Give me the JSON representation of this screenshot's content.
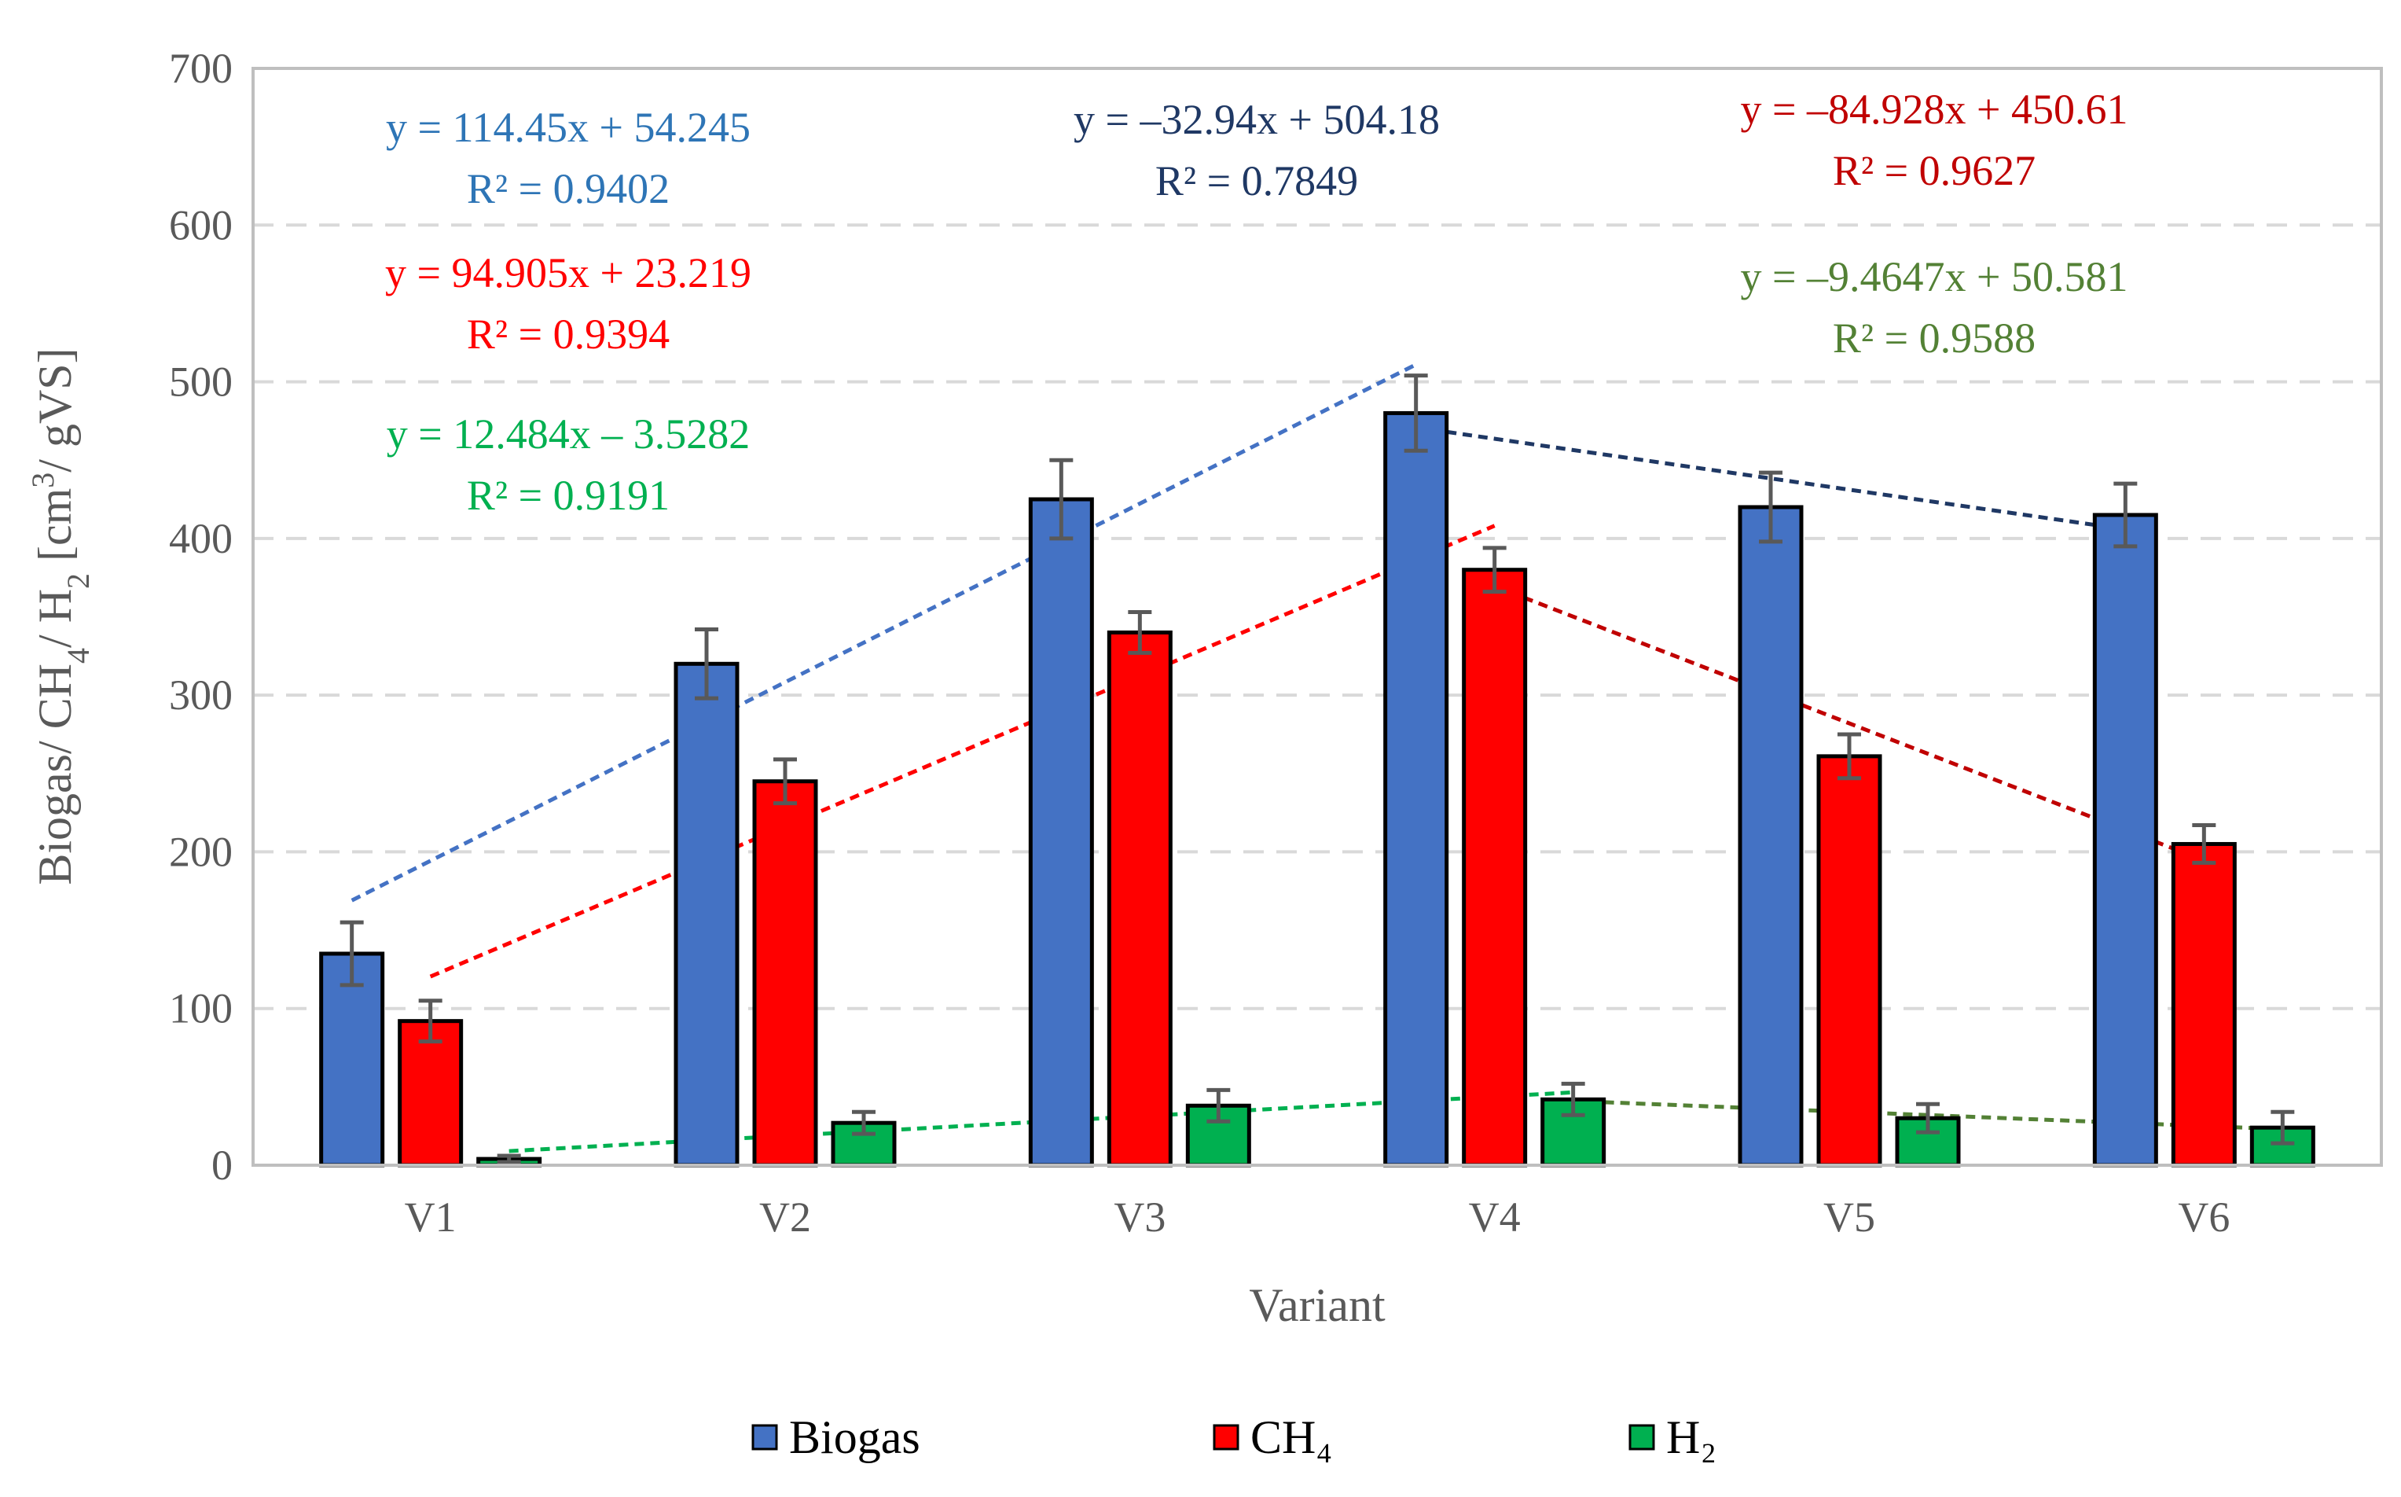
{
  "chart_data": {
    "type": "bar",
    "title": "",
    "xlabel": "Variant",
    "ylabel": "Biogas/ CH₄/ H₂ [cm³/ gVS]",
    "ylim": [
      0,
      700
    ],
    "yticks": [
      0,
      100,
      200,
      300,
      400,
      500,
      600,
      700
    ],
    "grid": true,
    "legend_position": "bottom",
    "categories": [
      "V1",
      "V2",
      "V3",
      "V4",
      "V5",
      "V6"
    ],
    "series": [
      {
        "name": "Biogas",
        "color": "#4472C4",
        "values": [
          135,
          320,
          425,
          480,
          420,
          415
        ],
        "errors": [
          20,
          22,
          25,
          24,
          22,
          20
        ]
      },
      {
        "name": "CH₄",
        "color": "#FF0000",
        "values": [
          92,
          245,
          340,
          380,
          261,
          205
        ],
        "errors": [
          13,
          14,
          13,
          14,
          14,
          12
        ]
      },
      {
        "name": "H₂",
        "color": "#00B050",
        "values": [
          4,
          27,
          38,
          42,
          30,
          24
        ],
        "errors": [
          2,
          7,
          10,
          10,
          9,
          10
        ]
      }
    ],
    "trendlines": [
      {
        "series": "Biogas",
        "color": "#4472C4",
        "from_index": 0,
        "to_index": 3,
        "equation": "y = 114.45x + 54.245",
        "r2": "R² = 0.9402"
      },
      {
        "series": "Biogas",
        "color": "#1F3864",
        "from_index": 3,
        "to_index": 5,
        "equation": "y = –32.94x + 504.18",
        "r2": "R² = 0.7849"
      },
      {
        "series": "CH₄",
        "color": "#FF0000",
        "from_index": 0,
        "to_index": 3,
        "equation": "y = 94.905x + 23.219",
        "r2": "R² = 0.9394"
      },
      {
        "series": "CH₄",
        "color": "#C00000",
        "from_index": 3,
        "to_index": 5,
        "equation": "y = –84.928x + 450.61",
        "r2": "R² = 0.9627"
      },
      {
        "series": "H₂",
        "color": "#00B050",
        "from_index": 0,
        "to_index": 3,
        "equation": "y = 12.484x – 3.5282",
        "r2": "R² = 0.9191"
      },
      {
        "series": "H₂",
        "color": "#538135",
        "from_index": 3,
        "to_index": 5,
        "equation": "y = –9.4647x + 50.581",
        "r2": "R² = 0.9588"
      }
    ]
  },
  "colors": {
    "axis_text": "#595959",
    "frame": "#BFBFBF",
    "grid": "#D9D9D9",
    "error_bar": "#595959",
    "bar_outline": "#000000"
  }
}
